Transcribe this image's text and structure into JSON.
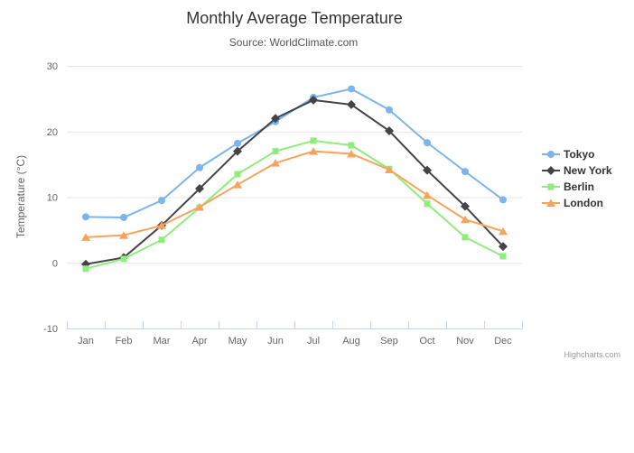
{
  "chart_data": {
    "type": "line",
    "title": "Monthly Average Temperature",
    "subtitle": "Source: WorldClimate.com",
    "ylabel": "Temperature (°C)",
    "xlabel": "",
    "credits": "Highcharts.com",
    "ylim": [
      -10,
      30
    ],
    "yticks": [
      30,
      20,
      10,
      0,
      -10
    ],
    "grid": true,
    "legend_position": "right",
    "categories": [
      "Jan",
      "Feb",
      "Mar",
      "Apr",
      "May",
      "Jun",
      "Jul",
      "Aug",
      "Sep",
      "Oct",
      "Nov",
      "Dec"
    ],
    "series": [
      {
        "name": "Tokyo",
        "color": "#7cb5ec",
        "marker": "circle",
        "values": [
          7.0,
          6.9,
          9.5,
          14.5,
          18.2,
          21.5,
          25.2,
          26.5,
          23.3,
          18.3,
          13.9,
          9.6
        ]
      },
      {
        "name": "New York",
        "color": "#434348",
        "marker": "diamond",
        "values": [
          -0.2,
          0.8,
          5.7,
          11.3,
          17.0,
          22.0,
          24.8,
          24.1,
          20.1,
          14.1,
          8.6,
          2.5
        ]
      },
      {
        "name": "Berlin",
        "color": "#90ed7d",
        "marker": "square",
        "values": [
          -0.9,
          0.6,
          3.5,
          8.4,
          13.5,
          17.0,
          18.6,
          17.9,
          14.3,
          9.0,
          3.9,
          1.0
        ]
      },
      {
        "name": "London",
        "color": "#f7a35c",
        "marker": "triangle",
        "values": [
          3.9,
          4.2,
          5.7,
          8.5,
          11.9,
          15.2,
          17.0,
          16.6,
          14.2,
          10.3,
          6.6,
          4.8
        ]
      }
    ],
    "colors": {
      "grid_line": "#e6e6e6",
      "axis_line": "#ccd6eb",
      "tick_label": "#666666",
      "legend_text": "#333333",
      "title": "#333333",
      "subtitle": "#555555",
      "credits": "#999999",
      "background": "#ffffff"
    }
  }
}
